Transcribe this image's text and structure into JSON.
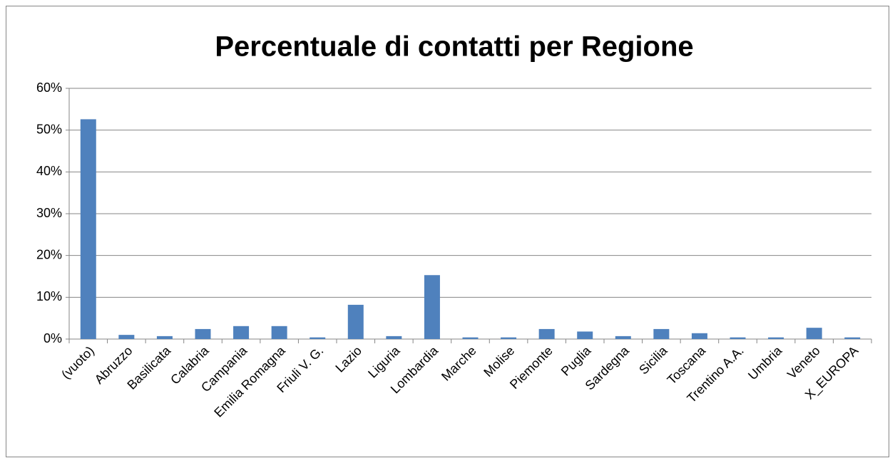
{
  "chart_data": {
    "type": "bar",
    "title": "Percentuale di contatti per Regione",
    "categories": [
      "(vuoto)",
      "Abruzzo",
      "Basilicata",
      "Calabria",
      "Campania",
      "Emilia Romagna",
      "Friuli V. G.",
      "Lazio",
      "Liguria",
      "Lombardia",
      "Marche",
      "Molise",
      "Piemonte",
      "Puglia",
      "Sardegna",
      "Sicilia",
      "Toscana",
      "Trentino A.A.",
      "Umbria",
      "Veneto",
      "X_EUROPA"
    ],
    "values": [
      52.6,
      1.0,
      0.7,
      2.4,
      3.1,
      3.1,
      0.4,
      8.2,
      0.7,
      15.3,
      0.4,
      0.4,
      2.4,
      1.8,
      0.7,
      2.4,
      1.4,
      0.4,
      0.4,
      2.7,
      0.4
    ],
    "color": "#4f81bd",
    "ylim": [
      0,
      60
    ],
    "yticks": [
      {
        "value": 0,
        "label": "0%"
      },
      {
        "value": 10,
        "label": "10%"
      },
      {
        "value": 20,
        "label": "20%"
      },
      {
        "value": 30,
        "label": "30%"
      },
      {
        "value": 40,
        "label": "40%"
      },
      {
        "value": 50,
        "label": "50%"
      },
      {
        "value": 60,
        "label": "60%"
      }
    ],
    "grid": true
  }
}
